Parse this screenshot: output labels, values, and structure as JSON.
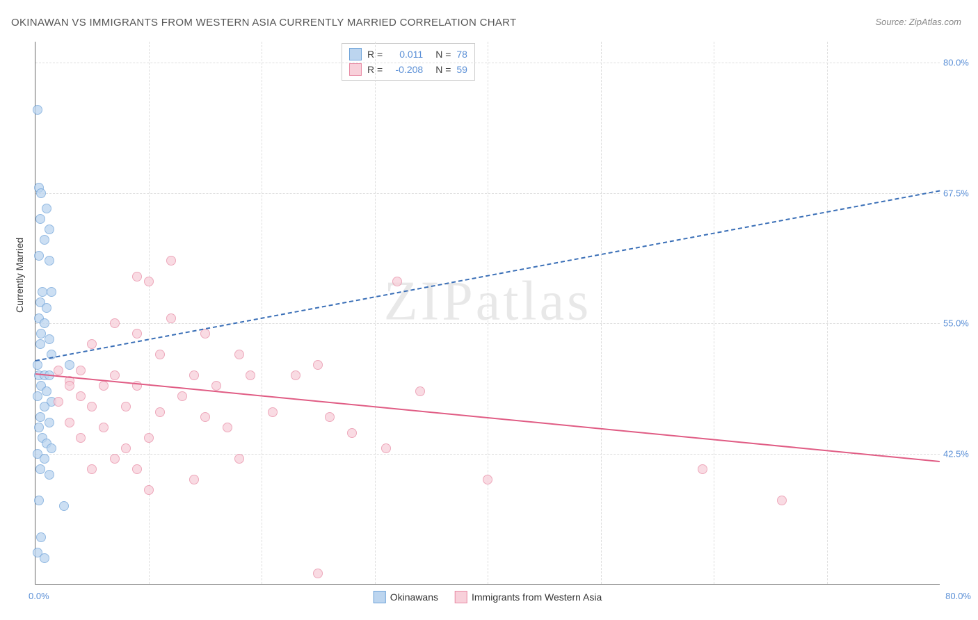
{
  "title": "OKINAWAN VS IMMIGRANTS FROM WESTERN ASIA CURRENTLY MARRIED CORRELATION CHART",
  "source_label": "Source: ZipAtlas.com",
  "watermark": "ZIPatlas",
  "ylabel": "Currently Married",
  "chart": {
    "type": "scatter",
    "xlim": [
      0,
      80
    ],
    "ylim": [
      30,
      82
    ],
    "x_axis_min_label": "0.0%",
    "x_axis_max_label": "80.0%",
    "ytick_labels": [
      "42.5%",
      "55.0%",
      "67.5%",
      "80.0%"
    ],
    "ytick_values": [
      42.5,
      55.0,
      67.5,
      80.0
    ],
    "xtick_values": [
      10,
      20,
      30,
      40,
      50,
      60,
      70
    ],
    "grid_color": "#dddddd",
    "axis_color": "#666666",
    "background_color": "#ffffff",
    "tick_label_color": "#5a8fd6"
  },
  "series": [
    {
      "name": "Okinawans",
      "marker_fill": "#bcd5ef",
      "marker_stroke": "#6fa3d9",
      "trend_color": "#3a6fb7",
      "trend_dash": true,
      "trend_start": [
        0,
        51.5
      ],
      "trend_end": [
        80,
        67.8
      ],
      "r_label": "R =",
      "r_value": "0.011",
      "n_label": "N =",
      "n_value": "78",
      "points": [
        [
          0.2,
          75.5
        ],
        [
          0.3,
          68
        ],
        [
          0.5,
          67.5
        ],
        [
          1,
          66
        ],
        [
          0.4,
          65
        ],
        [
          1.2,
          64
        ],
        [
          0.8,
          63
        ],
        [
          0.3,
          61.5
        ],
        [
          1.2,
          61
        ],
        [
          0.6,
          58
        ],
        [
          1.4,
          58
        ],
        [
          0.4,
          57
        ],
        [
          1,
          56.5
        ],
        [
          0.3,
          55.5
        ],
        [
          0.8,
          55
        ],
        [
          0.5,
          54
        ],
        [
          1.2,
          53.5
        ],
        [
          0.4,
          53
        ],
        [
          1.4,
          52
        ],
        [
          0.2,
          51
        ],
        [
          3,
          51
        ],
        [
          0.3,
          50
        ],
        [
          0.8,
          50
        ],
        [
          1.2,
          50
        ],
        [
          0.5,
          49
        ],
        [
          1,
          48.5
        ],
        [
          0.2,
          48
        ],
        [
          1.4,
          47.5
        ],
        [
          0.8,
          47
        ],
        [
          0.4,
          46
        ],
        [
          1.2,
          45.5
        ],
        [
          0.3,
          45
        ],
        [
          0.6,
          44
        ],
        [
          1,
          43.5
        ],
        [
          1.4,
          43
        ],
        [
          0.2,
          42.5
        ],
        [
          0.8,
          42
        ],
        [
          0.4,
          41
        ],
        [
          1.2,
          40.5
        ],
        [
          0.3,
          38
        ],
        [
          2.5,
          37.5
        ],
        [
          0.5,
          34.5
        ],
        [
          0.2,
          33
        ],
        [
          0.8,
          32.5
        ]
      ]
    },
    {
      "name": "Immigrants from Western Asia",
      "marker_fill": "#f8d0da",
      "marker_stroke": "#e88ba5",
      "trend_color": "#e05c84",
      "trend_dash": false,
      "trend_start": [
        0,
        50.2
      ],
      "trend_end": [
        80,
        41.8
      ],
      "r_label": "R =",
      "r_value": "-0.208",
      "n_label": "N =",
      "n_value": "59",
      "points": [
        [
          12,
          61
        ],
        [
          9,
          59.5
        ],
        [
          10,
          59
        ],
        [
          32,
          59
        ],
        [
          12,
          55.5
        ],
        [
          7,
          55
        ],
        [
          9,
          54
        ],
        [
          15,
          54
        ],
        [
          5,
          53
        ],
        [
          11,
          52
        ],
        [
          18,
          52
        ],
        [
          25,
          51
        ],
        [
          2,
          50.5
        ],
        [
          4,
          50.5
        ],
        [
          7,
          50
        ],
        [
          14,
          50
        ],
        [
          19,
          50
        ],
        [
          23,
          50
        ],
        [
          3,
          49.5
        ],
        [
          3,
          49
        ],
        [
          6,
          49
        ],
        [
          9,
          49
        ],
        [
          16,
          49
        ],
        [
          34,
          48.5
        ],
        [
          4,
          48
        ],
        [
          13,
          48
        ],
        [
          2,
          47.5
        ],
        [
          5,
          47
        ],
        [
          8,
          47
        ],
        [
          11,
          46.5
        ],
        [
          21,
          46.5
        ],
        [
          15,
          46
        ],
        [
          26,
          46
        ],
        [
          3,
          45.5
        ],
        [
          6,
          45
        ],
        [
          17,
          45
        ],
        [
          28,
          44.5
        ],
        [
          4,
          44
        ],
        [
          10,
          44
        ],
        [
          8,
          43
        ],
        [
          31,
          43
        ],
        [
          7,
          42
        ],
        [
          18,
          42
        ],
        [
          5,
          41
        ],
        [
          9,
          41
        ],
        [
          59,
          41
        ],
        [
          14,
          40
        ],
        [
          10,
          39
        ],
        [
          40,
          40
        ],
        [
          66,
          38
        ],
        [
          25,
          31
        ]
      ]
    }
  ],
  "bottom_legend": [
    {
      "label": "Okinawans",
      "fill": "#bcd5ef",
      "stroke": "#6fa3d9"
    },
    {
      "label": "Immigrants from Western Asia",
      "fill": "#f8d0da",
      "stroke": "#e88ba5"
    }
  ]
}
